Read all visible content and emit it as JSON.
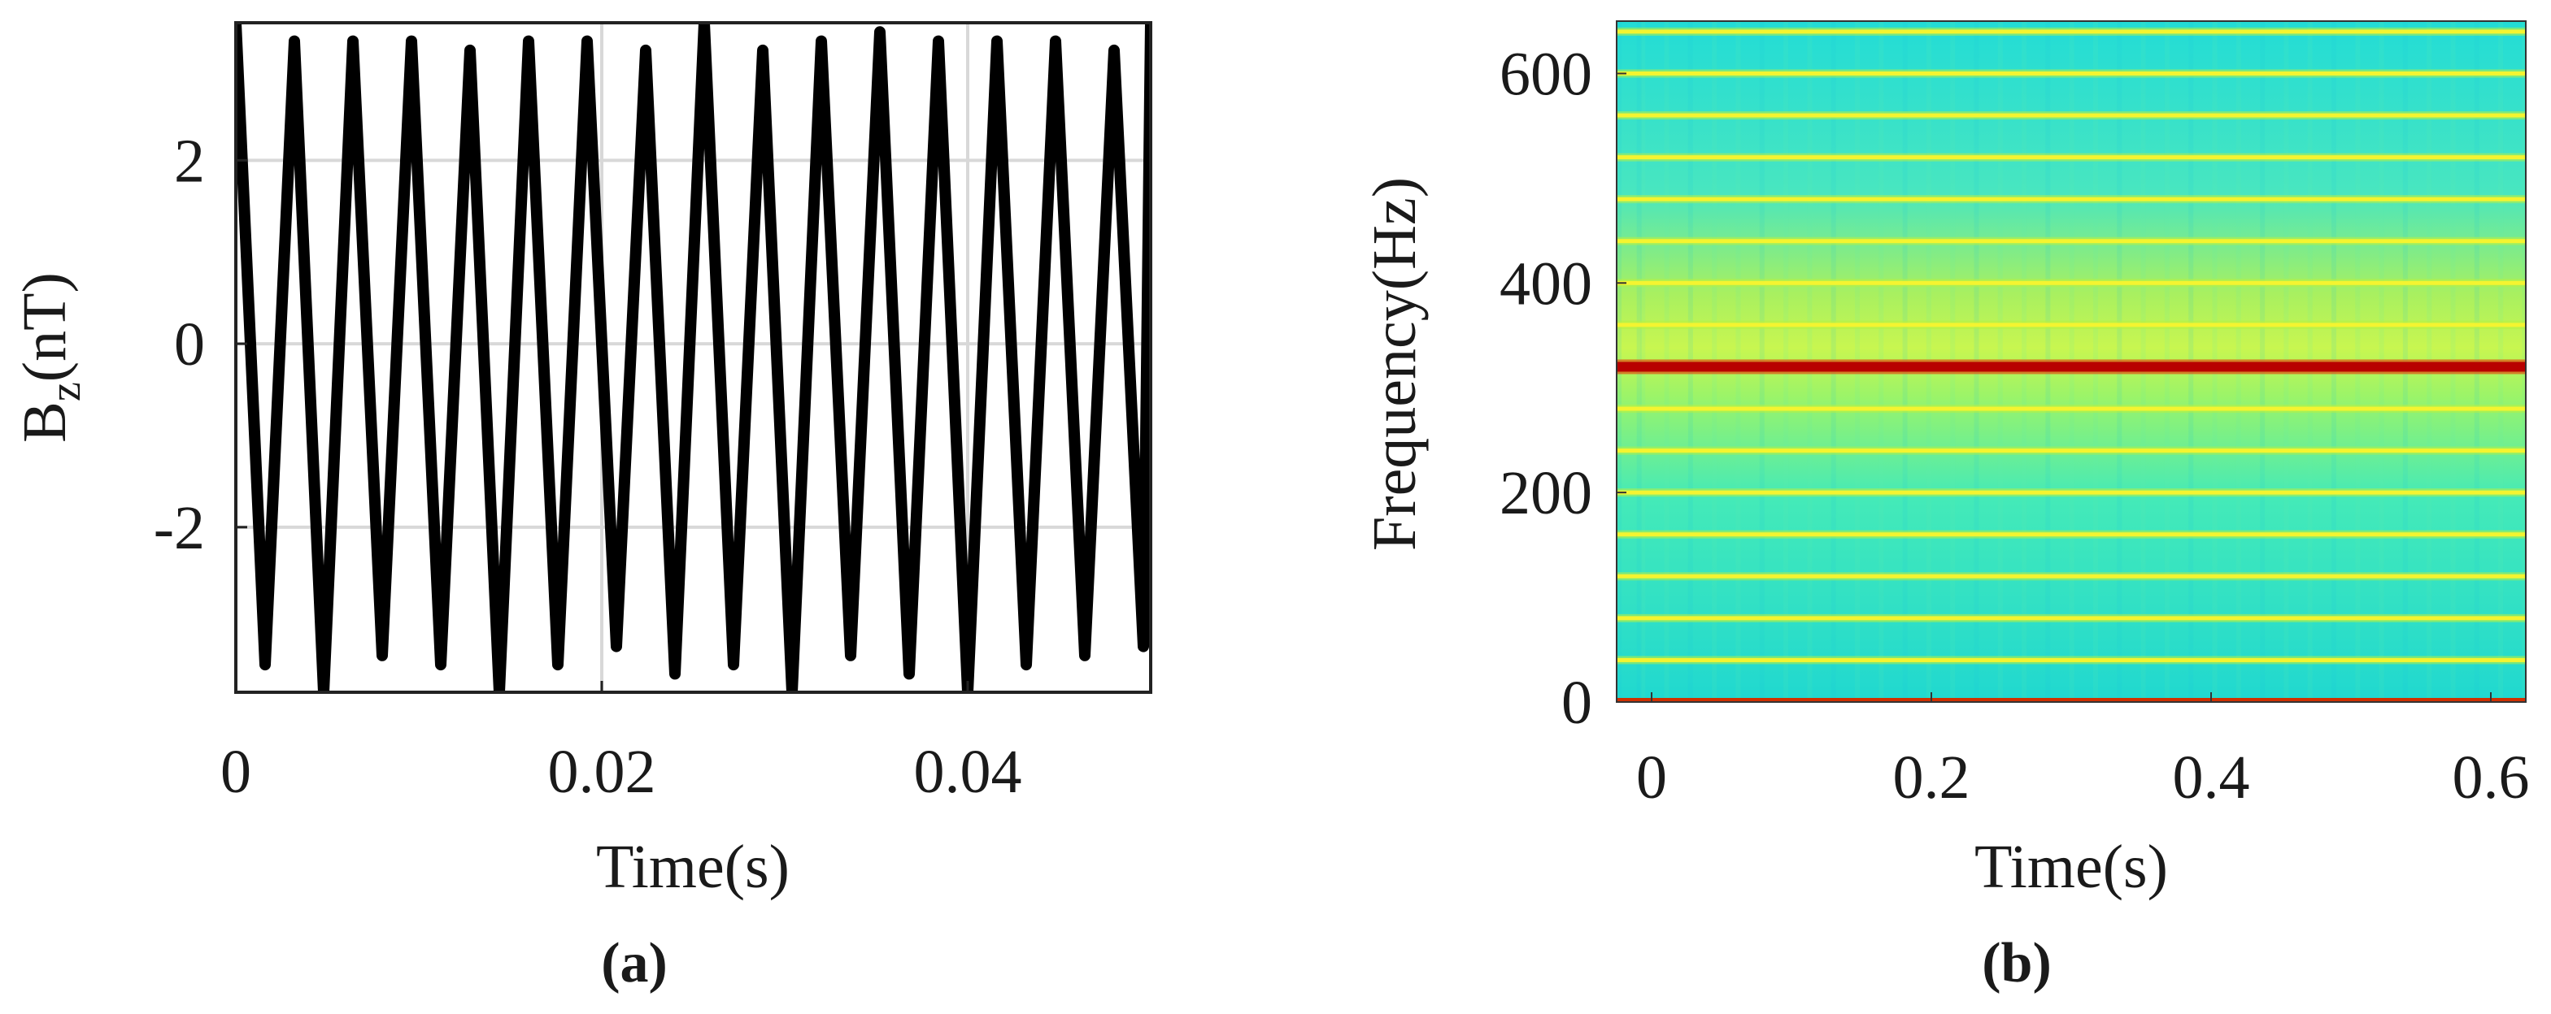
{
  "chart_data": [
    {
      "type": "line",
      "panel_label": "(a)",
      "xlabel": "Time(s)",
      "ylabel_main": "B",
      "ylabel_sub": "z",
      "ylabel_unit": "(nT)",
      "xlim": [
        0,
        0.05
      ],
      "ylim": [
        -3.8,
        3.5
      ],
      "xticks": [
        0,
        0.02,
        0.04
      ],
      "xtick_labels": [
        "0",
        "0.02",
        "0.04"
      ],
      "yticks": [
        -2,
        0,
        2
      ],
      "ytick_labels": [
        "-2",
        "0",
        "2"
      ],
      "grid": true,
      "series": [
        {
          "name": "Bz",
          "color": "#000000",
          "x": [
            0,
            0.0016,
            0.0032,
            0.0048,
            0.0064,
            0.008,
            0.0096,
            0.0112,
            0.0128,
            0.0144,
            0.016,
            0.0176,
            0.0192,
            0.0208,
            0.0224,
            0.024,
            0.0256,
            0.0272,
            0.0288,
            0.0304,
            0.032,
            0.0336,
            0.0352,
            0.0368,
            0.0384,
            0.04,
            0.0416,
            0.0432,
            0.0448,
            0.0464,
            0.048,
            0.0496,
            0.05
          ],
          "y": [
            3.5,
            -3.5,
            3.3,
            -3.8,
            3.3,
            -3.4,
            3.3,
            -3.5,
            3.2,
            -3.8,
            3.3,
            -3.5,
            3.3,
            -3.3,
            3.2,
            -3.6,
            3.5,
            -3.5,
            3.2,
            -3.8,
            3.3,
            -3.4,
            3.4,
            -3.6,
            3.3,
            -3.8,
            3.3,
            -3.5,
            3.3,
            -3.4,
            3.2,
            -3.3,
            3.5
          ]
        }
      ]
    },
    {
      "type": "heatmap",
      "panel_label": "(b)",
      "xlabel": "Time(s)",
      "ylabel": "Frequency(Hz)",
      "xlim": [
        -0.025,
        0.625
      ],
      "ylim": [
        0,
        650
      ],
      "xticks": [
        0,
        0.2,
        0.4,
        0.6
      ],
      "xtick_labels": [
        "0",
        "0.2",
        "0.4",
        "0.6"
      ],
      "yticks": [
        0,
        200,
        400,
        600
      ],
      "ytick_labels": [
        "0",
        "200",
        "400",
        "600"
      ],
      "colormap": "jet",
      "colors": {
        "background": "#30e6c8",
        "mid_band": "#9cf468",
        "harmonic": "#f4f430",
        "peak": "#b80000"
      },
      "background_level": 0.42,
      "harmonics_hz": [
        40,
        80,
        120,
        160,
        200,
        240,
        280,
        360,
        400,
        440,
        480,
        520,
        560,
        600,
        640
      ],
      "harmonic_level": 0.62,
      "peak_frequency_hz": 320,
      "peak_level": 1.0,
      "dc_level": 0.9
    }
  ]
}
